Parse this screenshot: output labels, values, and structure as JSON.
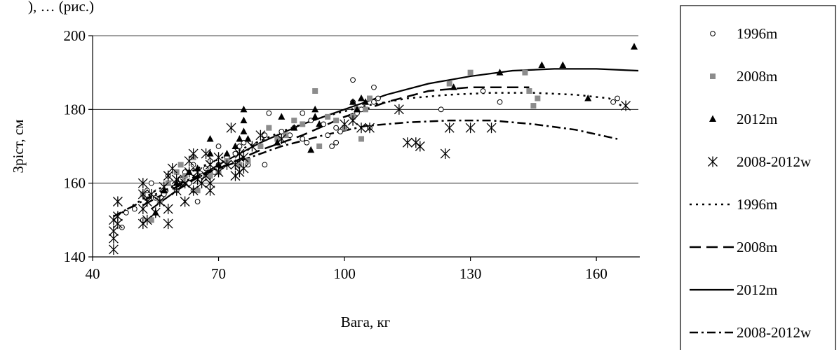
{
  "caption_fragment": "), … (рис.)",
  "chart_data": {
    "type": "scatter",
    "xlabel": "Вага, кг",
    "ylabel": "Зріст, см",
    "xlim": [
      40,
      170
    ],
    "ylim": [
      140,
      200
    ],
    "x_ticks": [
      "40",
      "70",
      "100",
      "130",
      "160"
    ],
    "y_ticks": [
      "140",
      "160",
      "180",
      "200"
    ],
    "x_tick_values": [
      40,
      70,
      100,
      130,
      160
    ],
    "y_tick_values": [
      140,
      160,
      180,
      200
    ],
    "grid": "horizontal",
    "legend_position": "right",
    "series": [
      {
        "name": "1996m",
        "marker": "circle-open",
        "points": [
          [
            47,
            148
          ],
          [
            48,
            152
          ],
          [
            50,
            153
          ],
          [
            52,
            150
          ],
          [
            53,
            158
          ],
          [
            54,
            160
          ],
          [
            55,
            156
          ],
          [
            56,
            155
          ],
          [
            57,
            157
          ],
          [
            58,
            162
          ],
          [
            59,
            160
          ],
          [
            60,
            158
          ],
          [
            61,
            161
          ],
          [
            62,
            163
          ],
          [
            63,
            160
          ],
          [
            64,
            158
          ],
          [
            64,
            165
          ],
          [
            65,
            155
          ],
          [
            66,
            162
          ],
          [
            67,
            164
          ],
          [
            68,
            166
          ],
          [
            69,
            163
          ],
          [
            70,
            165
          ],
          [
            70,
            170
          ],
          [
            72,
            167
          ],
          [
            74,
            168
          ],
          [
            75,
            170
          ],
          [
            76,
            171
          ],
          [
            77,
            165
          ],
          [
            80,
            170
          ],
          [
            81,
            173
          ],
          [
            81,
            165
          ],
          [
            82,
            179
          ],
          [
            85,
            174
          ],
          [
            87,
            173
          ],
          [
            88,
            175
          ],
          [
            90,
            179
          ],
          [
            90,
            172
          ],
          [
            91,
            171
          ],
          [
            92,
            177
          ],
          [
            95,
            176
          ],
          [
            96,
            173
          ],
          [
            97,
            170
          ],
          [
            98,
            171
          ],
          [
            98,
            175
          ],
          [
            99,
            174
          ],
          [
            102,
            182
          ],
          [
            102,
            188
          ],
          [
            103,
            179
          ],
          [
            104,
            180
          ],
          [
            106,
            175
          ],
          [
            107,
            186
          ],
          [
            107,
            182
          ],
          [
            108,
            183
          ],
          [
            123,
            180
          ],
          [
            133,
            185
          ],
          [
            137,
            182
          ],
          [
            164,
            182
          ],
          [
            165,
            183
          ]
        ]
      },
      {
        "name": "2008m",
        "marker": "square-filled",
        "points": [
          [
            52,
            157
          ],
          [
            54,
            150
          ],
          [
            56,
            155
          ],
          [
            58,
            160
          ],
          [
            60,
            163
          ],
          [
            61,
            165
          ],
          [
            62,
            162
          ],
          [
            64,
            167
          ],
          [
            65,
            158
          ],
          [
            68,
            162
          ],
          [
            70,
            163
          ],
          [
            72,
            166
          ],
          [
            75,
            165
          ],
          [
            77,
            166
          ],
          [
            80,
            170
          ],
          [
            82,
            175
          ],
          [
            84,
            172
          ],
          [
            86,
            173
          ],
          [
            88,
            177
          ],
          [
            90,
            176
          ],
          [
            93,
            185
          ],
          [
            94,
            170
          ],
          [
            96,
            178
          ],
          [
            98,
            177
          ],
          [
            100,
            175
          ],
          [
            102,
            178
          ],
          [
            103,
            180
          ],
          [
            104,
            172
          ],
          [
            105,
            180
          ],
          [
            106,
            183
          ],
          [
            125,
            187
          ],
          [
            130,
            190
          ],
          [
            143,
            190
          ],
          [
            144,
            185
          ],
          [
            145,
            181
          ],
          [
            146,
            183
          ]
        ]
      },
      {
        "name": "2012m",
        "marker": "triangle-filled",
        "points": [
          [
            55,
            152
          ],
          [
            57,
            158
          ],
          [
            60,
            160
          ],
          [
            63,
            163
          ],
          [
            65,
            164
          ],
          [
            68,
            168
          ],
          [
            68,
            172
          ],
          [
            70,
            165
          ],
          [
            72,
            168
          ],
          [
            74,
            170
          ],
          [
            75,
            172
          ],
          [
            76,
            174
          ],
          [
            76,
            177
          ],
          [
            76,
            180
          ],
          [
            77,
            172
          ],
          [
            84,
            171
          ],
          [
            85,
            178
          ],
          [
            88,
            175
          ],
          [
            92,
            169
          ],
          [
            93,
            178
          ],
          [
            93,
            180
          ],
          [
            94,
            176
          ],
          [
            102,
            182
          ],
          [
            103,
            180
          ],
          [
            104,
            183
          ],
          [
            105,
            182
          ],
          [
            126,
            186
          ],
          [
            137,
            190
          ],
          [
            147,
            192
          ],
          [
            152,
            192
          ],
          [
            158,
            183
          ],
          [
            169,
            197
          ]
        ]
      },
      {
        "name": "2008-2012w",
        "marker": "asterisk",
        "points": [
          [
            45,
            142
          ],
          [
            45,
            145
          ],
          [
            45,
            147
          ],
          [
            45,
            150
          ],
          [
            46,
            149
          ],
          [
            46,
            151
          ],
          [
            46,
            155
          ],
          [
            52,
            149
          ],
          [
            52,
            153
          ],
          [
            52,
            157
          ],
          [
            52,
            160
          ],
          [
            53,
            150
          ],
          [
            53,
            155
          ],
          [
            54,
            157
          ],
          [
            55,
            152
          ],
          [
            56,
            155
          ],
          [
            57,
            159
          ],
          [
            58,
            149
          ],
          [
            58,
            153
          ],
          [
            58,
            162
          ],
          [
            59,
            164
          ],
          [
            60,
            158
          ],
          [
            60,
            161
          ],
          [
            62,
            155
          ],
          [
            62,
            160
          ],
          [
            63,
            163
          ],
          [
            63,
            166
          ],
          [
            64,
            158
          ],
          [
            64,
            168
          ],
          [
            65,
            161
          ],
          [
            65,
            163
          ],
          [
            66,
            160
          ],
          [
            67,
            162
          ],
          [
            67,
            168
          ],
          [
            68,
            158
          ],
          [
            68,
            160
          ],
          [
            68,
            165
          ],
          [
            70,
            163
          ],
          [
            70,
            167
          ],
          [
            72,
            165
          ],
          [
            73,
            175
          ],
          [
            74,
            162
          ],
          [
            74,
            165
          ],
          [
            75,
            163
          ],
          [
            75,
            168
          ],
          [
            76,
            164
          ],
          [
            76,
            167
          ],
          [
            78,
            170
          ],
          [
            80,
            173
          ],
          [
            85,
            172
          ],
          [
            100,
            176
          ],
          [
            102,
            177
          ],
          [
            104,
            175
          ],
          [
            106,
            175
          ],
          [
            113,
            180
          ],
          [
            115,
            171
          ],
          [
            117,
            171
          ],
          [
            118,
            170
          ],
          [
            124,
            168
          ],
          [
            125,
            175
          ],
          [
            130,
            175
          ],
          [
            135,
            175
          ],
          [
            167,
            181
          ]
        ]
      }
    ],
    "trendlines": [
      {
        "name": "1996m",
        "style": "dotted",
        "points": [
          [
            47,
            152
          ],
          [
            55,
            158
          ],
          [
            65,
            164
          ],
          [
            75,
            169
          ],
          [
            85,
            174
          ],
          [
            95,
            178
          ],
          [
            105,
            181
          ],
          [
            115,
            183
          ],
          [
            125,
            184
          ],
          [
            135,
            184.5
          ],
          [
            145,
            184.5
          ],
          [
            155,
            184
          ],
          [
            163,
            183
          ],
          [
            166,
            181
          ]
        ]
      },
      {
        "name": "2008m",
        "style": "dashed",
        "points": [
          [
            52,
            154
          ],
          [
            60,
            159
          ],
          [
            70,
            164
          ],
          [
            80,
            169
          ],
          [
            90,
            173
          ],
          [
            100,
            178
          ],
          [
            110,
            182
          ],
          [
            120,
            185
          ],
          [
            130,
            186
          ],
          [
            140,
            186
          ],
          [
            144,
            186
          ]
        ]
      },
      {
        "name": "2012m",
        "style": "solid",
        "points": [
          [
            54,
            153
          ],
          [
            60,
            158
          ],
          [
            70,
            165
          ],
          [
            80,
            171
          ],
          [
            90,
            176
          ],
          [
            100,
            180
          ],
          [
            110,
            184
          ],
          [
            120,
            187
          ],
          [
            130,
            189
          ],
          [
            140,
            190.5
          ],
          [
            150,
            191
          ],
          [
            160,
            191
          ],
          [
            170,
            190.5
          ]
        ]
      },
      {
        "name": "2008-2012w",
        "style": "dash-dot",
        "points": [
          [
            45,
            151
          ],
          [
            55,
            157
          ],
          [
            65,
            162
          ],
          [
            75,
            166
          ],
          [
            85,
            170
          ],
          [
            95,
            173
          ],
          [
            105,
            175.5
          ],
          [
            115,
            176.5
          ],
          [
            125,
            177
          ],
          [
            135,
            177
          ],
          [
            145,
            176
          ],
          [
            155,
            174.5
          ],
          [
            165,
            172
          ]
        ]
      }
    ]
  }
}
